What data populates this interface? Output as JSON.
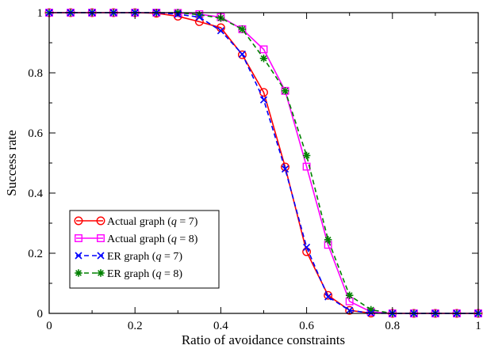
{
  "chart_data": {
    "type": "line",
    "xlabel": "Ratio of avoidance constraints",
    "ylabel": "Success rate",
    "xlim": [
      0,
      1
    ],
    "ylim": [
      0,
      1
    ],
    "xticks": [
      "0",
      "0.2",
      "0.4",
      "0.6",
      "0.8",
      "1"
    ],
    "yticks": [
      "0",
      "0.2",
      "0.4",
      "0.6",
      "0.8",
      "1"
    ],
    "grid": false,
    "legend_position": "bottom-left",
    "x": [
      0,
      0.05,
      0.1,
      0.15,
      0.2,
      0.25,
      0.3,
      0.35,
      0.4,
      0.45,
      0.5,
      0.55,
      0.6,
      0.65,
      0.7,
      0.75,
      0.8,
      0.85,
      0.9,
      0.95,
      1.0
    ],
    "series": [
      {
        "name": "Actual graph (q = 7)",
        "label_pre": "Actual graph (",
        "label_var": "q",
        "label_post": " = 7)",
        "color": "#ff0000",
        "marker": "circle",
        "dash": "solid",
        "values": [
          1,
          1,
          1,
          1,
          1,
          0.998,
          0.988,
          0.97,
          0.95,
          0.86,
          0.735,
          0.487,
          0.205,
          0.06,
          0.01,
          0.001,
          0,
          0,
          0,
          0,
          0
        ]
      },
      {
        "name": "Actual graph (q = 8)",
        "label_pre": "Actual graph (",
        "label_var": "q",
        "label_post": " = 8)",
        "color": "#ff00ff",
        "marker": "square",
        "dash": "solid",
        "values": [
          1,
          1,
          1,
          1,
          1,
          1,
          0.999,
          0.995,
          0.985,
          0.945,
          0.878,
          0.74,
          0.488,
          0.228,
          0.04,
          0.005,
          0,
          0,
          0,
          0,
          0
        ]
      },
      {
        "name": "ER graph (q = 7)",
        "label_pre": "ER graph (",
        "label_var": "q",
        "label_post": " = 7)",
        "color": "#0000ff",
        "marker": "x",
        "dash": "dashed",
        "values": [
          1,
          1,
          1,
          1,
          1,
          1,
          0.995,
          0.985,
          0.94,
          0.862,
          0.71,
          0.48,
          0.22,
          0.055,
          0.01,
          0.001,
          0,
          0,
          0,
          0,
          0
        ]
      },
      {
        "name": "ER graph (q = 8)",
        "label_pre": "ER graph (",
        "label_var": "q",
        "label_post": " = 8)",
        "color": "#008000",
        "marker": "asterisk",
        "dash": "dashed",
        "values": [
          1,
          1,
          1,
          1,
          1,
          1,
          1,
          0.993,
          0.982,
          0.945,
          0.848,
          0.74,
          0.525,
          0.245,
          0.06,
          0.012,
          0,
          0,
          0,
          0,
          0
        ]
      }
    ]
  }
}
